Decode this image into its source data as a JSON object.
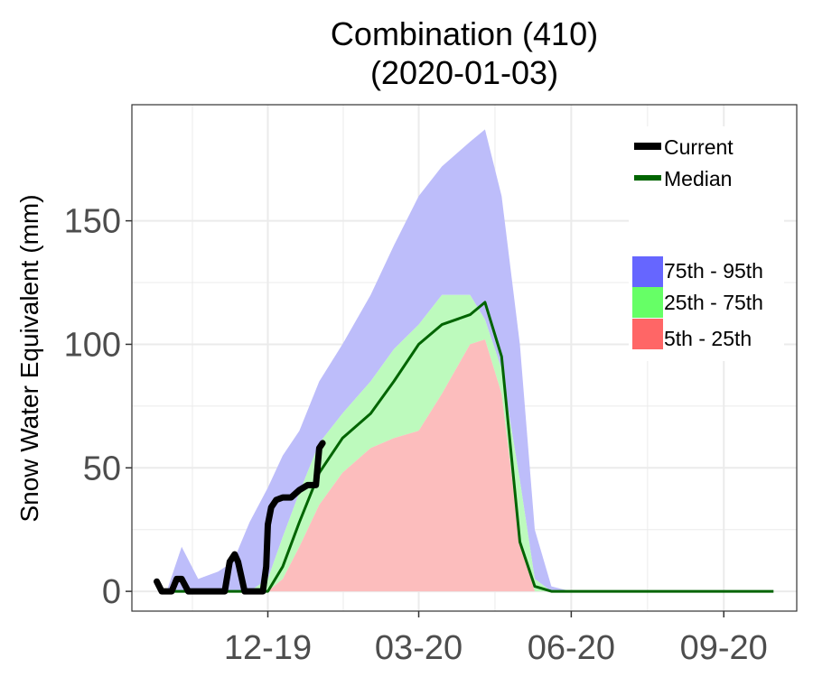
{
  "chart_data": {
    "type": "area",
    "title": "Combination (410)",
    "subtitle": "(2020-01-03)",
    "xlabel": "",
    "ylabel": "Snow Water Equivalent (mm)",
    "xlim": [
      "2019-09-10",
      "2020-10-15"
    ],
    "ylim": [
      -8,
      197
    ],
    "x_ticks": [
      "2019-12-01",
      "2020-03-01",
      "2020-06-01",
      "2020-09-01"
    ],
    "x_tick_labels": [
      "12-19",
      "03-20",
      "06-20",
      "09-20"
    ],
    "y_ticks": [
      0,
      50,
      100,
      150
    ],
    "y_tick_labels": [
      "0",
      "50",
      "100",
      "150"
    ],
    "grid": true,
    "legend_placement": "top-right",
    "legend": {
      "lines": [
        {
          "name": "Current",
          "color": "#000000"
        },
        {
          "name": "Median",
          "color": "#006400"
        }
      ],
      "bands": [
        {
          "name": "75th - 95th",
          "color": "#6666ff"
        },
        {
          "name": "25th - 75th",
          "color": "#66ff66"
        },
        {
          "name": "5th - 25th",
          "color": "#ff6666"
        }
      ]
    },
    "band_colors": {
      "p75_p95": "#bdbdfa",
      "p25_p75": "#bdfabd",
      "p5_p25": "#fcbdbd"
    },
    "x": [
      "2019-10-01",
      "2019-10-10",
      "2019-10-20",
      "2019-11-01",
      "2019-11-10",
      "2019-11-20",
      "2019-12-01",
      "2019-12-10",
      "2019-12-20",
      "2020-01-01",
      "2020-01-15",
      "2020-02-01",
      "2020-02-15",
      "2020-03-01",
      "2020-03-15",
      "2020-04-01",
      "2020-04-10",
      "2020-04-20",
      "2020-05-01",
      "2020-05-10",
      "2020-05-20",
      "2020-06-01",
      "2020-06-10",
      "2020-07-01",
      "2020-08-01",
      "2020-09-01",
      "2020-10-01"
    ],
    "p5": [
      0,
      0,
      0,
      0,
      0,
      0,
      0,
      0,
      0,
      0,
      0,
      0,
      0,
      0,
      0,
      0,
      0,
      0,
      0,
      0,
      0,
      0,
      0,
      0,
      0,
      0,
      0
    ],
    "p25": [
      0,
      0,
      0,
      0,
      0,
      0,
      0,
      5,
      18,
      35,
      48,
      58,
      62,
      65,
      80,
      100,
      102,
      80,
      20,
      0,
      0,
      0,
      0,
      0,
      0,
      0,
      0
    ],
    "p75": [
      0,
      0,
      0,
      0,
      0,
      0,
      5,
      22,
      40,
      60,
      72,
      85,
      98,
      108,
      120,
      120,
      110,
      90,
      45,
      5,
      0,
      0,
      0,
      0,
      0,
      0,
      0
    ],
    "p95": [
      0,
      18,
      5,
      8,
      12,
      28,
      42,
      55,
      65,
      85,
      100,
      120,
      140,
      160,
      172,
      182,
      187,
      160,
      100,
      25,
      2,
      0,
      0,
      0,
      0,
      0,
      0
    ],
    "median": [
      0,
      0,
      0,
      0,
      0,
      0,
      0,
      10,
      28,
      48,
      62,
      72,
      85,
      100,
      108,
      112,
      117,
      95,
      20,
      2,
      0,
      0,
      0,
      0,
      0,
      0,
      0
    ],
    "current": {
      "x": [
        "2019-09-25",
        "2019-09-28",
        "2019-10-04",
        "2019-10-07",
        "2019-10-10",
        "2019-10-14",
        "2019-10-17",
        "2019-10-24",
        "2019-10-30",
        "2019-11-05",
        "2019-11-08",
        "2019-11-11",
        "2019-11-13",
        "2019-11-17",
        "2019-11-20",
        "2019-11-25",
        "2019-11-28",
        "2019-11-30",
        "2019-12-01",
        "2019-12-03",
        "2019-12-06",
        "2019-12-10",
        "2019-12-15",
        "2019-12-20",
        "2019-12-25",
        "2019-12-30",
        "2020-01-01",
        "2020-01-03"
      ],
      "values": [
        4,
        0,
        0,
        5,
        5,
        0,
        0,
        0,
        0,
        0,
        12,
        15,
        12,
        0,
        0,
        0,
        0,
        10,
        27,
        34,
        37,
        38,
        38,
        41,
        43,
        43,
        58,
        60
      ]
    }
  }
}
